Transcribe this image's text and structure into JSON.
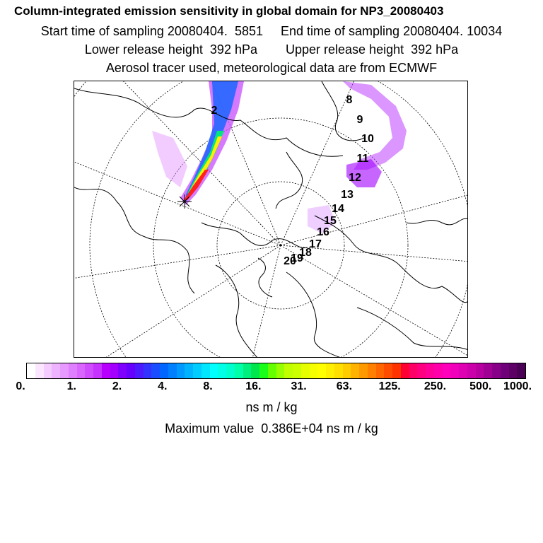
{
  "header": {
    "title": "Column-integrated emission sensitivity in global domain for NP3_20080403",
    "line2": "Start time of sampling 20080404.  5851     End time of sampling 20080404. 10034",
    "line3": "Lower release height  392 hPa        Upper release height  392 hPa",
    "line4": "Aerosol tracer used, meteorological data are from ECMWF"
  },
  "map": {
    "day_labels": [
      "2",
      "8",
      "9",
      "10",
      "11",
      "12",
      "13",
      "14",
      "15",
      "16",
      "17",
      "18",
      "19",
      "20"
    ]
  },
  "colorbar": {
    "colors": [
      "#ffffff",
      "#fbe6ff",
      "#f4ccff",
      "#eeb3ff",
      "#e899ff",
      "#df7fff",
      "#d866ff",
      "#cf4dff",
      "#c633ff",
      "#b800ff",
      "#a400ff",
      "#7f00ff",
      "#6600ff",
      "#4c1aff",
      "#3333ff",
      "#1a4dff",
      "#0066ff",
      "#0080ff",
      "#0099ff",
      "#00b3ff",
      "#00ccff",
      "#00e6ff",
      "#00ffff",
      "#00ffe6",
      "#00ffcc",
      "#00ffa6",
      "#00f080",
      "#00e64d",
      "#1aff1a",
      "#66ff00",
      "#99ff00",
      "#bfff00",
      "#ccff00",
      "#e6ff00",
      "#f5ff00",
      "#ffff00",
      "#ffef00",
      "#ffdf00",
      "#ffcc00",
      "#ffb300",
      "#ff9900",
      "#ff8000",
      "#ff6600",
      "#ff4c00",
      "#ff3300",
      "#ff0033",
      "#ff0066",
      "#ff0080",
      "#ff0099",
      "#ff00aa",
      "#ff00bb",
      "#f000bb",
      "#e000b3",
      "#cc00aa",
      "#b800a0",
      "#a00094",
      "#880088",
      "#70007a",
      "#5c0066",
      "#4a0055"
    ],
    "tick_labels": [
      "0.",
      "1.",
      "2.",
      "4.",
      "8.",
      "16.",
      "31.",
      "63.",
      "125.",
      "250.",
      "500.",
      "1000."
    ],
    "units": "ns m / kg",
    "max_value_text": "Maximum value  0.386E+04 ns m / kg"
  }
}
